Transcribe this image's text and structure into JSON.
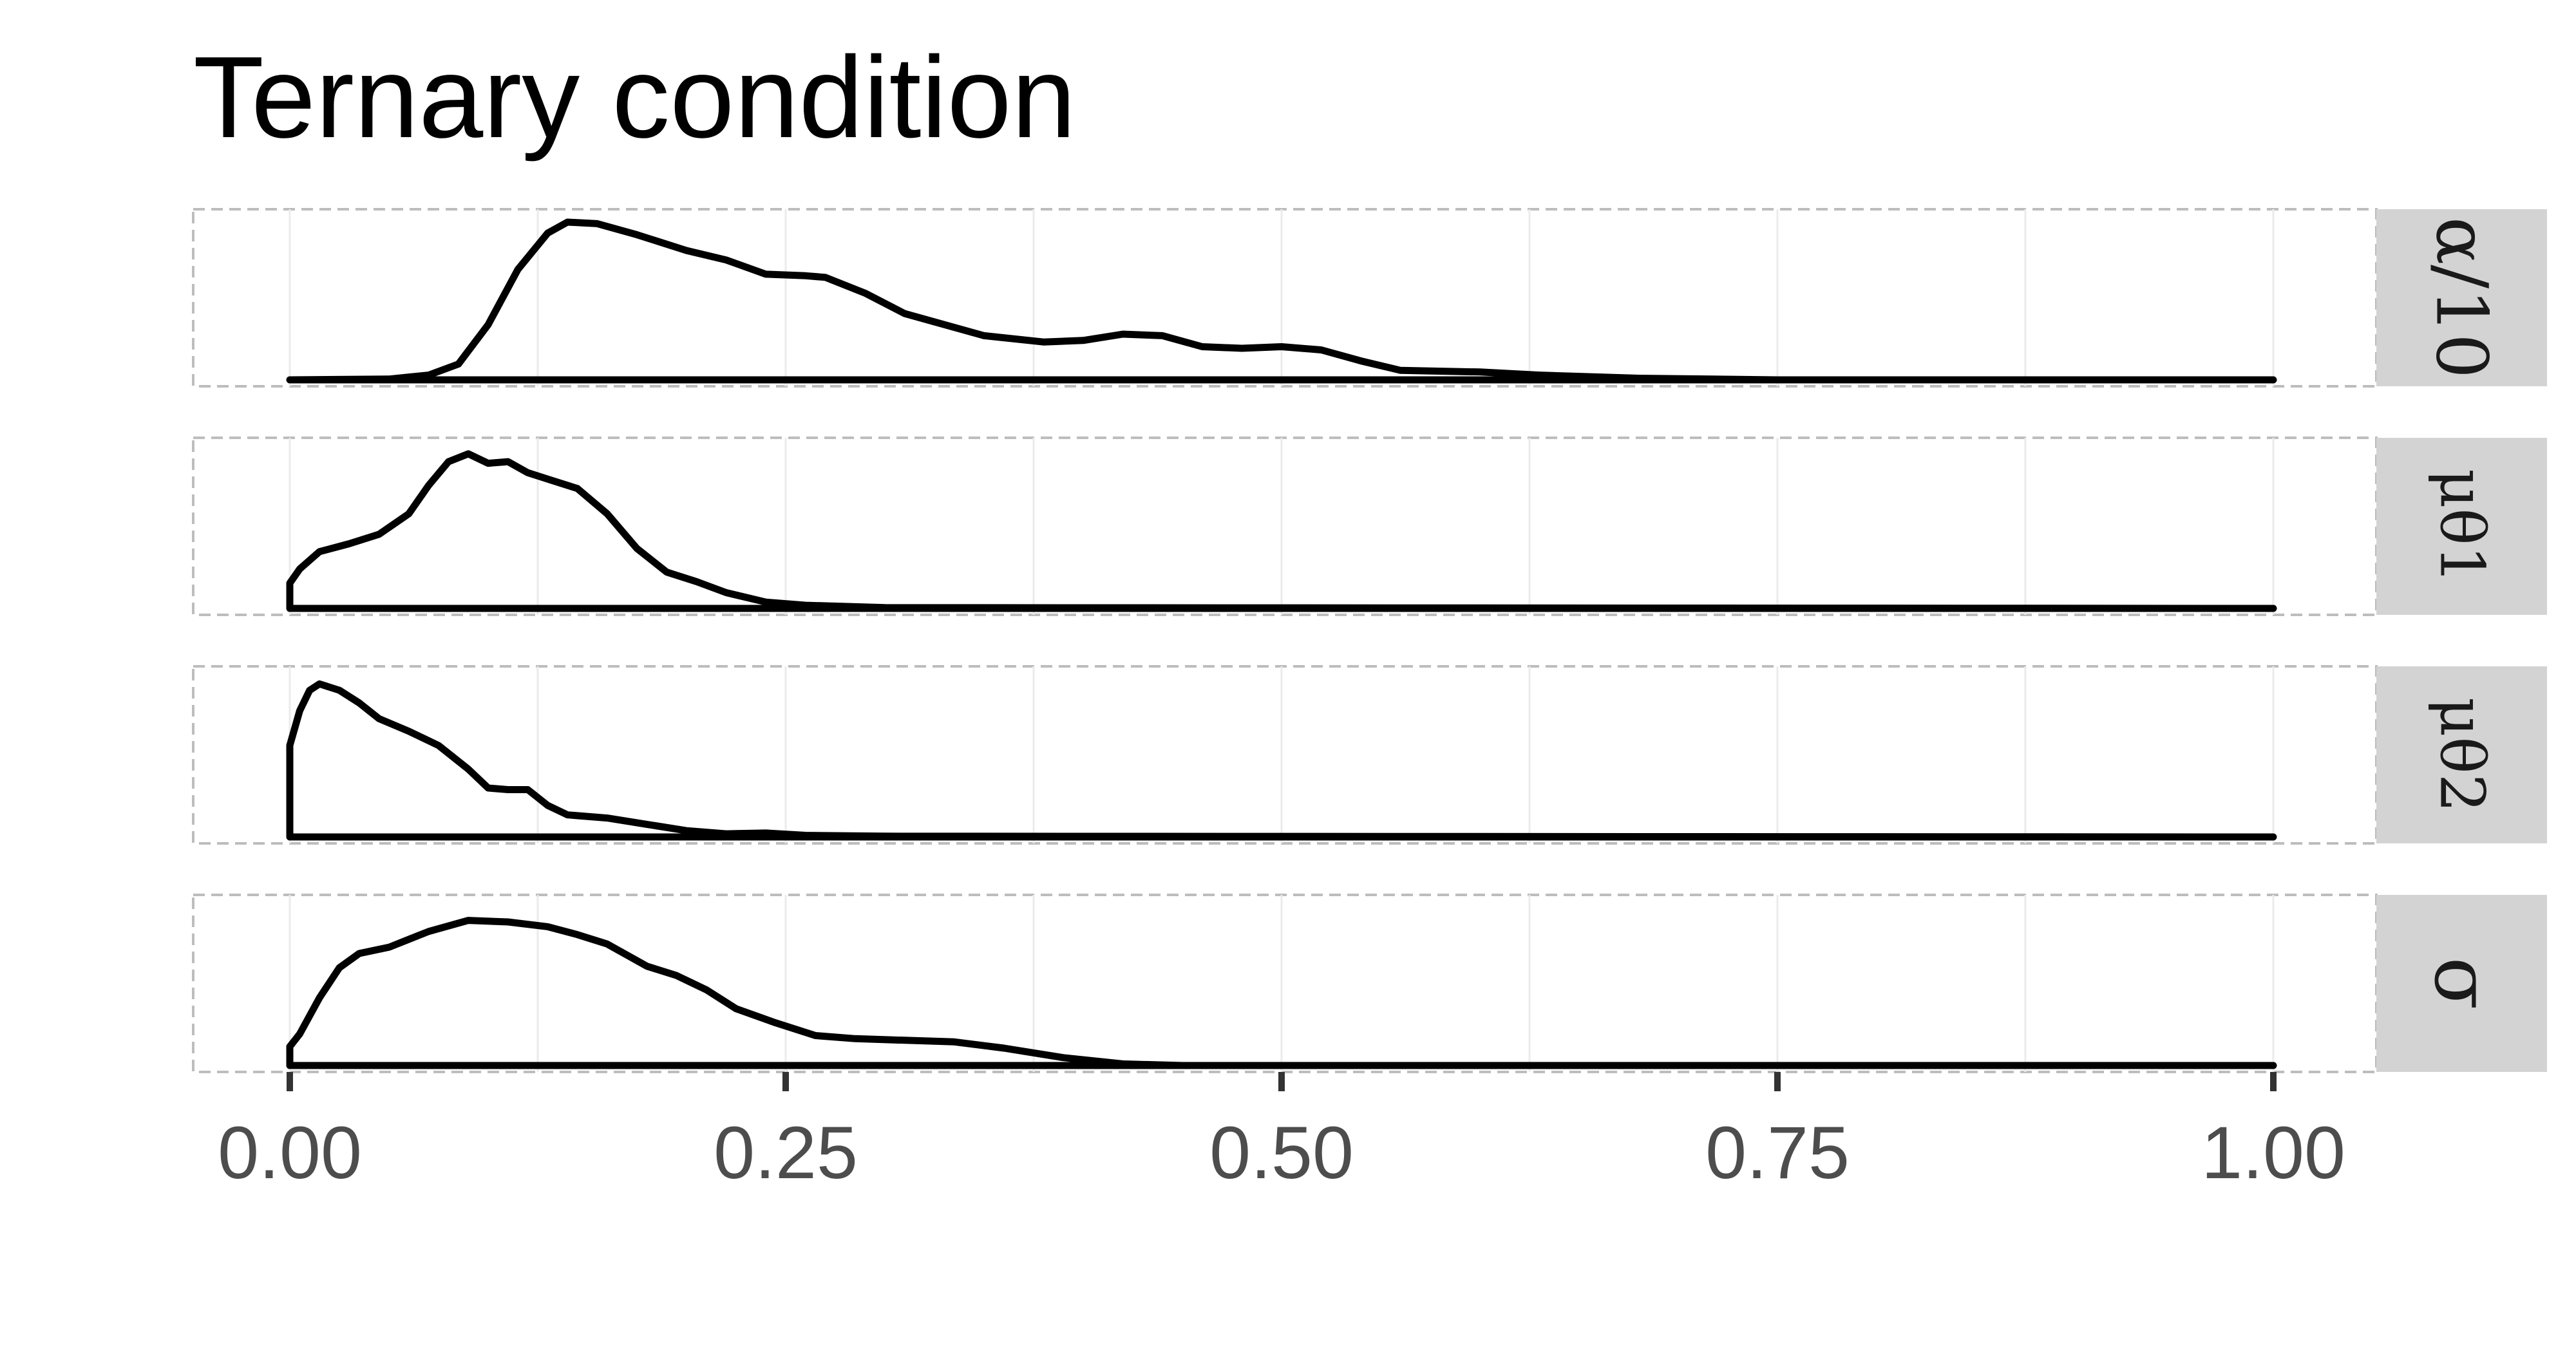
{
  "chart_data": {
    "type": "area",
    "title": "Ternary condition",
    "xlabel": "",
    "ylabel": "",
    "xlim": [
      0,
      1
    ],
    "x_ticks": [
      0,
      0.25,
      0.5,
      0.75,
      1.0
    ],
    "x_tick_labels": [
      "0.00",
      "0.25",
      "0.50",
      "0.75",
      "1.00"
    ],
    "grid": true,
    "legend": "none",
    "facets": [
      {
        "label": "α/10",
        "points": [
          [
            0,
            0
          ],
          [
            0.05,
            0.005
          ],
          [
            0.07,
            0.03
          ],
          [
            0.085,
            0.1
          ],
          [
            0.1,
            0.35
          ],
          [
            0.115,
            0.7
          ],
          [
            0.13,
            0.93
          ],
          [
            0.14,
            1.0
          ],
          [
            0.155,
            0.99
          ],
          [
            0.175,
            0.92
          ],
          [
            0.2,
            0.82
          ],
          [
            0.22,
            0.76
          ],
          [
            0.24,
            0.67
          ],
          [
            0.26,
            0.66
          ],
          [
            0.27,
            0.65
          ],
          [
            0.29,
            0.55
          ],
          [
            0.31,
            0.42
          ],
          [
            0.35,
            0.28
          ],
          [
            0.38,
            0.24
          ],
          [
            0.4,
            0.25
          ],
          [
            0.42,
            0.29
          ],
          [
            0.44,
            0.28
          ],
          [
            0.46,
            0.21
          ],
          [
            0.48,
            0.2
          ],
          [
            0.5,
            0.21
          ],
          [
            0.52,
            0.19
          ],
          [
            0.54,
            0.12
          ],
          [
            0.56,
            0.06
          ],
          [
            0.6,
            0.05
          ],
          [
            0.63,
            0.03
          ],
          [
            0.68,
            0.01
          ],
          [
            0.75,
            0.0
          ],
          [
            1.0,
            0.0
          ]
        ]
      },
      {
        "label": "μθ1",
        "label_main": "μ",
        "label_sub": "θ",
        "label_subsub": "1",
        "points": [
          [
            0,
            0.16
          ],
          [
            0.005,
            0.25
          ],
          [
            0.015,
            0.36
          ],
          [
            0.03,
            0.41
          ],
          [
            0.045,
            0.47
          ],
          [
            0.06,
            0.6
          ],
          [
            0.07,
            0.78
          ],
          [
            0.08,
            0.93
          ],
          [
            0.09,
            0.98
          ],
          [
            0.1,
            0.92
          ],
          [
            0.11,
            0.93
          ],
          [
            0.12,
            0.86
          ],
          [
            0.13,
            0.82
          ],
          [
            0.145,
            0.76
          ],
          [
            0.16,
            0.6
          ],
          [
            0.175,
            0.38
          ],
          [
            0.19,
            0.23
          ],
          [
            0.205,
            0.17
          ],
          [
            0.22,
            0.1
          ],
          [
            0.24,
            0.04
          ],
          [
            0.26,
            0.02
          ],
          [
            0.3,
            0.005
          ],
          [
            1.0,
            0.0
          ]
        ]
      },
      {
        "label": "μθ2",
        "label_main": "μ",
        "label_sub": "θ",
        "label_subsub": "2",
        "points": [
          [
            0,
            0.58
          ],
          [
            0.005,
            0.8
          ],
          [
            0.01,
            0.93
          ],
          [
            0.015,
            0.97
          ],
          [
            0.025,
            0.93
          ],
          [
            0.035,
            0.85
          ],
          [
            0.045,
            0.75
          ],
          [
            0.06,
            0.67
          ],
          [
            0.075,
            0.58
          ],
          [
            0.09,
            0.43
          ],
          [
            0.1,
            0.31
          ],
          [
            0.11,
            0.3
          ],
          [
            0.12,
            0.3
          ],
          [
            0.13,
            0.2
          ],
          [
            0.14,
            0.14
          ],
          [
            0.16,
            0.12
          ],
          [
            0.18,
            0.08
          ],
          [
            0.2,
            0.04
          ],
          [
            0.22,
            0.02
          ],
          [
            0.24,
            0.025
          ],
          [
            0.26,
            0.01
          ],
          [
            0.3,
            0.005
          ],
          [
            1.0,
            0.0
          ]
        ]
      },
      {
        "label": "σ",
        "points": [
          [
            0,
            0.12
          ],
          [
            0.005,
            0.2
          ],
          [
            0.015,
            0.43
          ],
          [
            0.025,
            0.62
          ],
          [
            0.035,
            0.71
          ],
          [
            0.05,
            0.75
          ],
          [
            0.07,
            0.85
          ],
          [
            0.09,
            0.92
          ],
          [
            0.11,
            0.91
          ],
          [
            0.13,
            0.88
          ],
          [
            0.145,
            0.83
          ],
          [
            0.16,
            0.77
          ],
          [
            0.18,
            0.63
          ],
          [
            0.195,
            0.57
          ],
          [
            0.21,
            0.48
          ],
          [
            0.225,
            0.36
          ],
          [
            0.245,
            0.27
          ],
          [
            0.265,
            0.19
          ],
          [
            0.285,
            0.17
          ],
          [
            0.31,
            0.16
          ],
          [
            0.335,
            0.15
          ],
          [
            0.36,
            0.11
          ],
          [
            0.39,
            0.05
          ],
          [
            0.42,
            0.01
          ],
          [
            0.45,
            0.0
          ],
          [
            1.0,
            0.0
          ]
        ]
      }
    ]
  }
}
